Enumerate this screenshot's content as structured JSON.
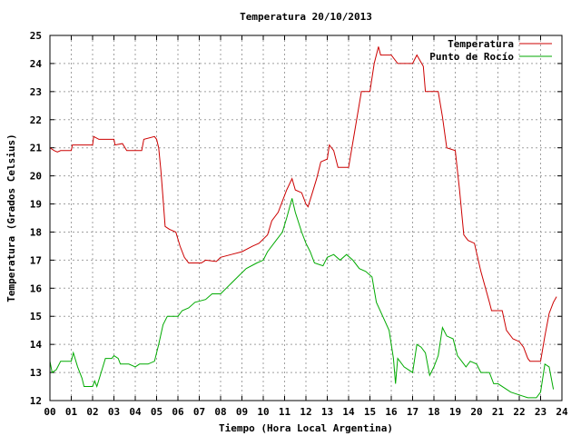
{
  "chart_data": {
    "type": "line",
    "title": "Temperatura 20/10/2013",
    "xlabel": "Tiempo (Hora Local Argentina)",
    "ylabel": "Temperatura (Grados Celsius)",
    "xlim": [
      0,
      24
    ],
    "ylim": [
      12,
      25
    ],
    "grid": true,
    "legend_position": "top-right",
    "x_ticks": [
      "00",
      "01",
      "02",
      "03",
      "04",
      "05",
      "06",
      "07",
      "08",
      "09",
      "10",
      "11",
      "12",
      "13",
      "14",
      "15",
      "16",
      "17",
      "18",
      "19",
      "20",
      "21",
      "22",
      "23",
      "24"
    ],
    "y_ticks": [
      "12",
      "13",
      "14",
      "15",
      "16",
      "17",
      "18",
      "19",
      "20",
      "21",
      "22",
      "23",
      "24",
      "25"
    ],
    "series": [
      {
        "name": "Temperatura",
        "color": "#cc0000",
        "points": [
          [
            0.0,
            21.0
          ],
          [
            0.2,
            20.9
          ],
          [
            0.35,
            20.85
          ],
          [
            0.5,
            20.9
          ],
          [
            1.0,
            20.9
          ],
          [
            1.05,
            21.1
          ],
          [
            2.0,
            21.1
          ],
          [
            2.05,
            21.4
          ],
          [
            2.3,
            21.3
          ],
          [
            3.0,
            21.3
          ],
          [
            3.05,
            21.1
          ],
          [
            3.4,
            21.15
          ],
          [
            3.6,
            20.9
          ],
          [
            4.3,
            20.9
          ],
          [
            4.4,
            21.3
          ],
          [
            4.9,
            21.4
          ],
          [
            5.0,
            21.3
          ],
          [
            5.1,
            21.0
          ],
          [
            5.2,
            20.2
          ],
          [
            5.3,
            19.2
          ],
          [
            5.4,
            18.2
          ],
          [
            5.6,
            18.1
          ],
          [
            5.9,
            18.0
          ],
          [
            6.1,
            17.5
          ],
          [
            6.3,
            17.1
          ],
          [
            6.5,
            16.9
          ],
          [
            7.1,
            16.9
          ],
          [
            7.3,
            17.0
          ],
          [
            7.8,
            16.95
          ],
          [
            8.0,
            17.1
          ],
          [
            8.5,
            17.2
          ],
          [
            9.0,
            17.3
          ],
          [
            9.5,
            17.5
          ],
          [
            9.8,
            17.6
          ],
          [
            10.2,
            17.9
          ],
          [
            10.4,
            18.4
          ],
          [
            10.7,
            18.7
          ],
          [
            10.9,
            19.1
          ],
          [
            11.1,
            19.5
          ],
          [
            11.35,
            19.9
          ],
          [
            11.5,
            19.5
          ],
          [
            11.8,
            19.4
          ],
          [
            12.0,
            19.0
          ],
          [
            12.1,
            18.9
          ],
          [
            12.3,
            19.4
          ],
          [
            12.5,
            19.9
          ],
          [
            12.7,
            20.5
          ],
          [
            13.0,
            20.6
          ],
          [
            13.1,
            21.1
          ],
          [
            13.3,
            20.9
          ],
          [
            13.5,
            20.3
          ],
          [
            14.0,
            20.3
          ],
          [
            14.2,
            21.2
          ],
          [
            14.6,
            23.0
          ],
          [
            15.0,
            23.0
          ],
          [
            15.2,
            24.0
          ],
          [
            15.4,
            24.6
          ],
          [
            15.5,
            24.3
          ],
          [
            16.0,
            24.3
          ],
          [
            16.3,
            24.0
          ],
          [
            17.0,
            24.0
          ],
          [
            17.2,
            24.3
          ],
          [
            17.5,
            23.9
          ],
          [
            17.6,
            23.0
          ],
          [
            18.2,
            23.0
          ],
          [
            18.4,
            22.1
          ],
          [
            18.6,
            21.0
          ],
          [
            19.0,
            20.9
          ],
          [
            19.2,
            19.5
          ],
          [
            19.4,
            17.9
          ],
          [
            19.6,
            17.7
          ],
          [
            19.9,
            17.6
          ],
          [
            20.2,
            16.6
          ],
          [
            20.6,
            15.5
          ],
          [
            20.7,
            15.2
          ],
          [
            21.2,
            15.2
          ],
          [
            21.4,
            14.5
          ],
          [
            21.7,
            14.2
          ],
          [
            22.0,
            14.1
          ],
          [
            22.2,
            13.9
          ],
          [
            22.4,
            13.5
          ],
          [
            22.5,
            13.4
          ],
          [
            23.0,
            13.4
          ],
          [
            23.2,
            14.3
          ],
          [
            23.4,
            15.1
          ],
          [
            23.6,
            15.5
          ],
          [
            23.75,
            15.7
          ]
        ]
      },
      {
        "name": "Punto de Rocío",
        "color": "#00aa00",
        "points": [
          [
            0.0,
            13.4
          ],
          [
            0.1,
            13.0
          ],
          [
            0.3,
            13.1
          ],
          [
            0.5,
            13.4
          ],
          [
            1.0,
            13.4
          ],
          [
            1.1,
            13.7
          ],
          [
            1.3,
            13.2
          ],
          [
            1.5,
            12.8
          ],
          [
            1.6,
            12.5
          ],
          [
            2.0,
            12.5
          ],
          [
            2.1,
            12.7
          ],
          [
            2.2,
            12.5
          ],
          [
            2.4,
            13.0
          ],
          [
            2.6,
            13.5
          ],
          [
            2.9,
            13.5
          ],
          [
            3.0,
            13.6
          ],
          [
            3.2,
            13.5
          ],
          [
            3.3,
            13.3
          ],
          [
            3.7,
            13.3
          ],
          [
            4.0,
            13.2
          ],
          [
            4.2,
            13.3
          ],
          [
            4.6,
            13.3
          ],
          [
            4.9,
            13.4
          ],
          [
            5.1,
            14.0
          ],
          [
            5.3,
            14.7
          ],
          [
            5.5,
            15.0
          ],
          [
            6.0,
            15.0
          ],
          [
            6.2,
            15.2
          ],
          [
            6.5,
            15.3
          ],
          [
            6.8,
            15.5
          ],
          [
            7.3,
            15.6
          ],
          [
            7.6,
            15.8
          ],
          [
            8.0,
            15.8
          ],
          [
            8.4,
            16.1
          ],
          [
            8.8,
            16.4
          ],
          [
            9.2,
            16.7
          ],
          [
            9.7,
            16.9
          ],
          [
            10.0,
            17.0
          ],
          [
            10.2,
            17.3
          ],
          [
            10.6,
            17.7
          ],
          [
            10.9,
            18.0
          ],
          [
            11.1,
            18.5
          ],
          [
            11.35,
            19.2
          ],
          [
            11.5,
            18.7
          ],
          [
            11.8,
            18.0
          ],
          [
            12.0,
            17.6
          ],
          [
            12.2,
            17.3
          ],
          [
            12.4,
            16.9
          ],
          [
            12.8,
            16.8
          ],
          [
            13.0,
            17.1
          ],
          [
            13.3,
            17.2
          ],
          [
            13.6,
            17.0
          ],
          [
            13.9,
            17.2
          ],
          [
            14.2,
            17.0
          ],
          [
            14.5,
            16.7
          ],
          [
            14.8,
            16.6
          ],
          [
            15.1,
            16.4
          ],
          [
            15.3,
            15.5
          ],
          [
            15.6,
            15.0
          ],
          [
            15.9,
            14.5
          ],
          [
            16.1,
            13.5
          ],
          [
            16.2,
            12.6
          ],
          [
            16.3,
            13.5
          ],
          [
            16.6,
            13.2
          ],
          [
            17.0,
            13.0
          ],
          [
            17.2,
            14.0
          ],
          [
            17.4,
            13.9
          ],
          [
            17.6,
            13.7
          ],
          [
            17.8,
            12.9
          ],
          [
            18.0,
            13.2
          ],
          [
            18.2,
            13.6
          ],
          [
            18.4,
            14.6
          ],
          [
            18.6,
            14.3
          ],
          [
            18.9,
            14.2
          ],
          [
            19.1,
            13.6
          ],
          [
            19.3,
            13.4
          ],
          [
            19.5,
            13.2
          ],
          [
            19.7,
            13.4
          ],
          [
            20.0,
            13.3
          ],
          [
            20.2,
            13.0
          ],
          [
            20.6,
            13.0
          ],
          [
            20.8,
            12.6
          ],
          [
            21.0,
            12.6
          ],
          [
            21.4,
            12.4
          ],
          [
            21.6,
            12.3
          ],
          [
            22.0,
            12.2
          ],
          [
            22.4,
            12.1
          ],
          [
            22.8,
            12.1
          ],
          [
            23.0,
            12.3
          ],
          [
            23.2,
            13.3
          ],
          [
            23.4,
            13.2
          ],
          [
            23.6,
            12.4
          ]
        ]
      }
    ]
  }
}
